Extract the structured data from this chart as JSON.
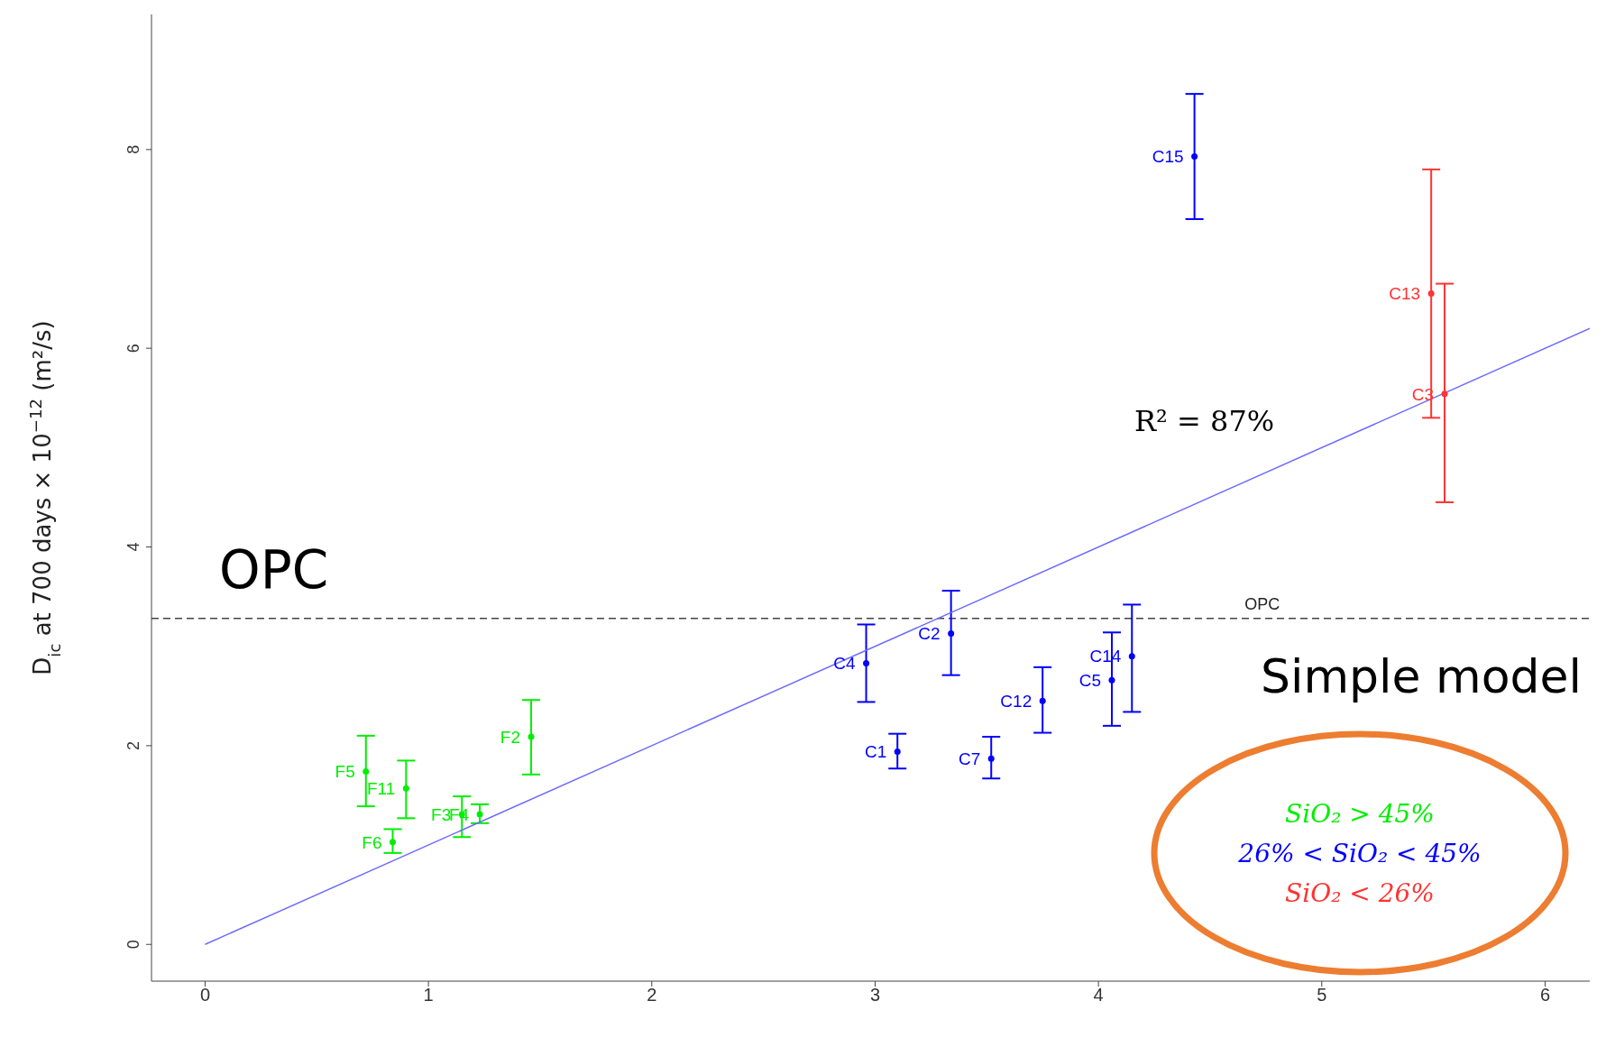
{
  "chart_data": {
    "type": "scatter",
    "ylabel": "D$_{ic}$ at 700 days × 10$^{−12}$ (m²/s)",
    "xlim": [
      -0.24,
      6.2
    ],
    "ylim": [
      -0.37,
      9.36
    ],
    "xticks": [
      0,
      1,
      2,
      3,
      4,
      5,
      6
    ],
    "yticks": [
      0,
      2,
      4,
      6,
      8
    ],
    "legend": "bottom right",
    "marker": "circle",
    "series": [
      {
        "name": "SiO₂ > 45%",
        "color": "#00ee00",
        "x": [
          0.72,
          0.9,
          0.84,
          1.15,
          1.23,
          1.46
        ],
        "values": [
          1.74,
          1.57,
          1.03,
          1.31,
          1.31,
          2.09
        ],
        "errors": [
          [
            1.39,
            2.1
          ],
          [
            1.27,
            1.85
          ],
          [
            0.92,
            1.16
          ],
          [
            1.08,
            1.49
          ],
          [
            1.22,
            1.41
          ],
          [
            1.71,
            2.46
          ]
        ]
      },
      {
        "name": "26% < SiO₂ < 45%",
        "color": "#0000ff",
        "x": [
          2.96,
          3.1,
          3.34,
          3.52,
          3.75,
          4.06,
          4.15,
          4.43
        ],
        "values": [
          2.83,
          1.94,
          3.13,
          1.87,
          2.45,
          2.66,
          2.9,
          7.93
        ],
        "errors": [
          [
            2.44,
            3.22
          ],
          [
            1.77,
            2.12
          ],
          [
            2.71,
            3.56
          ],
          [
            1.67,
            2.09
          ],
          [
            2.13,
            2.79
          ],
          [
            2.2,
            3.14
          ],
          [
            2.34,
            3.42
          ],
          [
            7.3,
            8.56
          ]
        ]
      },
      {
        "name": "SiO₂ < 26%",
        "color": "#ff3333",
        "x": [
          5.49,
          5.55
        ],
        "values": [
          6.55,
          5.54
        ],
        "errors": [
          [
            5.3,
            7.8
          ],
          [
            4.45,
            6.65
          ]
        ]
      },
      {
        "type": "line",
        "marker": "none",
        "color": "#6b6bff",
        "x": [
          0,
          6.2
        ],
        "values": [
          0,
          6.2
        ]
      }
    ],
    "ref_lines": [
      {
        "axis": "y",
        "value": 3.28,
        "label": "OPC",
        "color": "#444444",
        "line_style": "dashed"
      }
    ],
    "annotations": [
      "OPC",
      "R² = 87%",
      "Simple model",
      {
        "text": "F5",
        "x": 0.72,
        "y": 1.74
      },
      {
        "text": "F11",
        "x": 0.9,
        "y": 1.57
      },
      {
        "text": "F6",
        "x": 0.84,
        "y": 1.03
      },
      {
        "text": "F3",
        "x": 1.15,
        "y": 1.31
      },
      {
        "text": "F4",
        "x": 1.23,
        "y": 1.31
      },
      {
        "text": "F2",
        "x": 1.46,
        "y": 2.09
      },
      {
        "text": "C4",
        "x": 2.96,
        "y": 2.83
      },
      {
        "text": "C1",
        "x": 3.1,
        "y": 1.94
      },
      {
        "text": "C2",
        "x": 3.34,
        "y": 3.13
      },
      {
        "text": "C7",
        "x": 3.52,
        "y": 1.87
      },
      {
        "text": "C12",
        "x": 3.75,
        "y": 2.45
      },
      {
        "text": "C5",
        "x": 4.06,
        "y": 2.66
      },
      {
        "text": "C14",
        "x": 4.15,
        "y": 2.9
      },
      {
        "text": "C15",
        "x": 4.43,
        "y": 7.93
      },
      {
        "text": "C13",
        "x": 5.49,
        "y": 6.55
      },
      {
        "text": "C3",
        "x": 5.55,
        "y": 5.54
      }
    ]
  }
}
